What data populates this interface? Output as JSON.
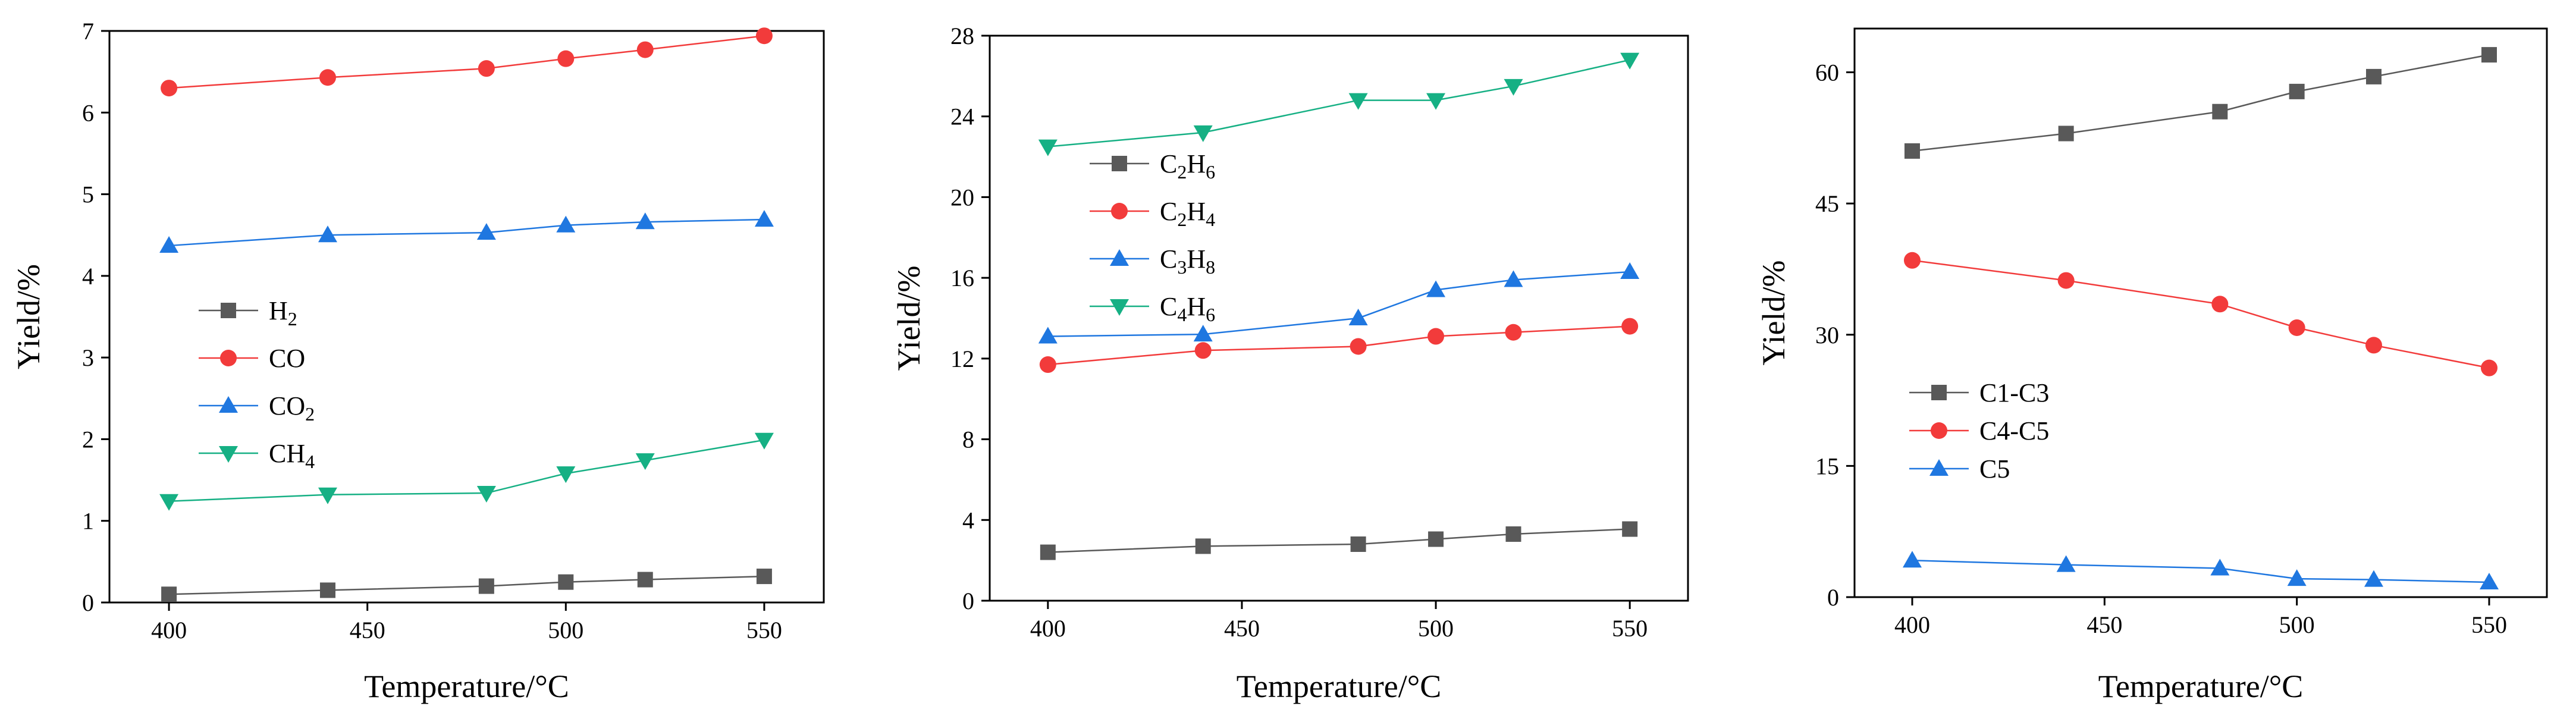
{
  "chart_data": [
    {
      "type": "line",
      "xlabel": "Temperature/°C",
      "ylabel": "Yield/%",
      "xlim": [
        385,
        565
      ],
      "ylim": [
        0,
        7
      ],
      "xticks": [
        "400",
        "450",
        "500",
        "550"
      ],
      "yticks": [
        "0",
        "1",
        "2",
        "3",
        "4",
        "5",
        "6",
        "7"
      ],
      "legend_position": "center-left",
      "x": [
        400,
        440,
        480,
        500,
        520,
        550
      ],
      "series": [
        {
          "name": "H2",
          "base": "H",
          "sub": "2",
          "color": "#595959",
          "marker": "square",
          "values": [
            0.1,
            0.15,
            0.2,
            0.25,
            0.28,
            0.32
          ]
        },
        {
          "name": "CO",
          "base": "CO",
          "sub": "",
          "color": "#f23b3b",
          "marker": "circle",
          "values": [
            6.3,
            6.43,
            6.54,
            6.66,
            6.77,
            6.94
          ]
        },
        {
          "name": "CO2",
          "base": "CO",
          "sub": "2",
          "color": "#1f77e0",
          "marker": "triangle-up",
          "values": [
            4.37,
            4.5,
            4.53,
            4.62,
            4.66,
            4.69
          ]
        },
        {
          "name": "CH4",
          "base": "CH",
          "sub": "4",
          "color": "#16b084",
          "marker": "triangle-down",
          "values": [
            1.24,
            1.32,
            1.34,
            1.58,
            1.74,
            1.99
          ]
        }
      ]
    },
    {
      "type": "line",
      "xlabel": "Temperature/°C",
      "ylabel": "Yield/%",
      "xlim": [
        385,
        565
      ],
      "ylim": [
        0,
        28
      ],
      "xticks": [
        "400",
        "450",
        "500",
        "550"
      ],
      "yticks": [
        "0",
        "4",
        "8",
        "12",
        "16",
        "20",
        "24",
        "28"
      ],
      "legend_position": "upper-left",
      "x": [
        400,
        440,
        480,
        500,
        520,
        550
      ],
      "series": [
        {
          "name": "C2H6",
          "base": "C",
          "sub": "2",
          "base2": "H",
          "sub2": "6",
          "color": "#595959",
          "marker": "square",
          "values": [
            2.4,
            2.7,
            2.8,
            3.05,
            3.3,
            3.55
          ]
        },
        {
          "name": "C2H4",
          "base": "C",
          "sub": "2",
          "base2": "H",
          "sub2": "4",
          "color": "#f23b3b",
          "marker": "circle",
          "values": [
            11.7,
            12.4,
            12.6,
            13.1,
            13.3,
            13.6
          ]
        },
        {
          "name": "C3H8",
          "base": "C",
          "sub": "3",
          "base2": "H",
          "sub2": "8",
          "color": "#1f77e0",
          "marker": "triangle-up",
          "values": [
            13.1,
            13.2,
            14.0,
            15.4,
            15.9,
            16.3
          ]
        },
        {
          "name": "C4H6",
          "base": "C",
          "sub": "4",
          "base2": "H",
          "sub2": "6",
          "color": "#16b084",
          "marker": "triangle-down",
          "values": [
            22.5,
            23.2,
            24.8,
            24.8,
            25.5,
            26.8
          ]
        }
      ]
    },
    {
      "type": "line",
      "xlabel": "Temperature/°C",
      "ylabel": "Yield/%",
      "xlim": [
        385,
        565
      ],
      "ylim": [
        0,
        65
      ],
      "xticks": [
        "400",
        "450",
        "500",
        "550"
      ],
      "yticks": [
        "0",
        "15",
        "30",
        "45",
        "60"
      ],
      "legend_position": "center-left",
      "x": [
        400,
        440,
        480,
        500,
        520,
        550
      ],
      "series": [
        {
          "name": "C1-C3",
          "base": "C1-C3",
          "sub": "",
          "color": "#595959",
          "marker": "square",
          "values": [
            51.0,
            53.0,
            55.5,
            57.8,
            59.5,
            62.0
          ]
        },
        {
          "name": "C4-C5",
          "base": "C4-C5",
          "sub": "",
          "color": "#f23b3b",
          "marker": "circle",
          "values": [
            38.5,
            36.2,
            33.5,
            30.8,
            28.8,
            26.2
          ]
        },
        {
          "name": "C5",
          "base": "C5",
          "sub": "",
          "color": "#1f77e0",
          "marker": "triangle-up",
          "values": [
            4.2,
            3.7,
            3.3,
            2.1,
            2.0,
            1.7
          ]
        }
      ]
    }
  ]
}
